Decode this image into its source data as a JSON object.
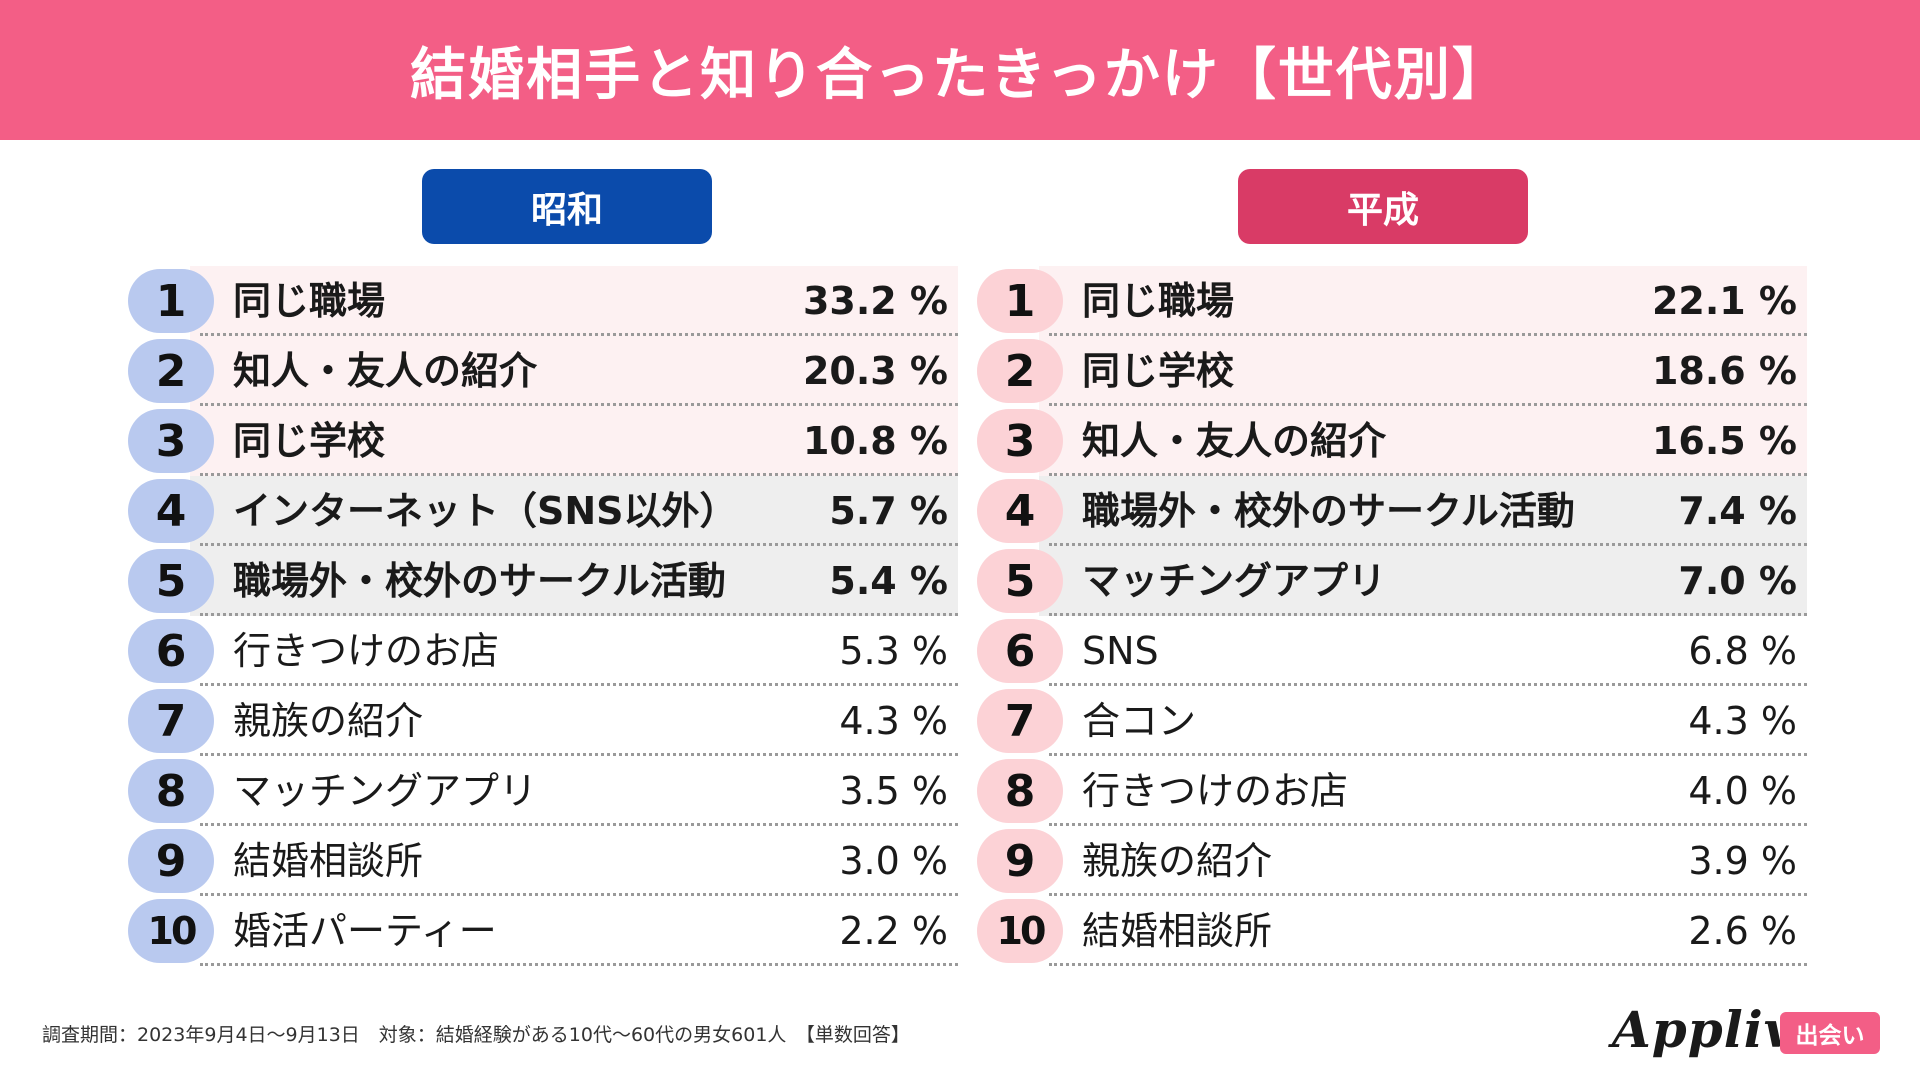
{
  "title": "結婚相手と知り合ったきっかけ【世代別】",
  "colors": {
    "header": "#f35e86",
    "showa_accent": "#0b4bab",
    "heisei_accent": "#d93b66",
    "showa_medal": "#b9c9ef",
    "heisei_medal": "#fcd2d6",
    "showa_band_top": "#fdf1f2",
    "heisei_band_top": "#fdf1f2",
    "band_mid": "#eeeeee"
  },
  "chart_data": [
    {
      "type": "table",
      "title": "昭和",
      "unit": "%",
      "ranks": [
        "1",
        "2",
        "3",
        "4",
        "5",
        "6",
        "7",
        "8",
        "9",
        "10"
      ],
      "categories": [
        "同じ職場",
        "知人・友人の紹介",
        "同じ学校",
        "インターネット（SNS以外）",
        "職場外・校外のサークル活動",
        "行きつけのお店",
        "親族の紹介",
        "マッチングアプリ",
        "結婚相談所",
        "婚活パーティー"
      ],
      "values": [
        33.2,
        20.3,
        10.8,
        5.7,
        5.4,
        5.3,
        4.3,
        3.5,
        3.0,
        2.2
      ],
      "value_labels": [
        "33.2 %",
        "20.3 %",
        "10.8 %",
        "5.7 %",
        "5.4 %",
        "5.3 %",
        "4.3 %",
        "3.5 %",
        "3.0 %",
        "2.2 %"
      ]
    },
    {
      "type": "table",
      "title": "平成",
      "unit": "%",
      "ranks": [
        "1",
        "2",
        "3",
        "4",
        "5",
        "6",
        "7",
        "8",
        "9",
        "10"
      ],
      "categories": [
        "同じ職場",
        "同じ学校",
        "知人・友人の紹介",
        "職場外・校外のサークル活動",
        "マッチングアプリ",
        "SNS",
        "合コン",
        "行きつけのお店",
        "親族の紹介",
        "結婚相談所"
      ],
      "values": [
        22.1,
        18.6,
        16.5,
        7.4,
        7.0,
        6.8,
        4.3,
        4.0,
        3.9,
        2.6
      ],
      "value_labels": [
        "22.1 %",
        "18.6 %",
        "16.5 %",
        "7.4 %",
        "7.0 %",
        "6.8 %",
        "4.3 %",
        "4.0 %",
        "3.9 %",
        "2.6 %"
      ]
    }
  ],
  "footer": {
    "note": "調査期間：2023年9月4日〜9月13日　対象：結婚経験がある10代〜60代の男女601人　【単数回答】",
    "brand": "Appliv",
    "brand_tag": "出会い"
  }
}
